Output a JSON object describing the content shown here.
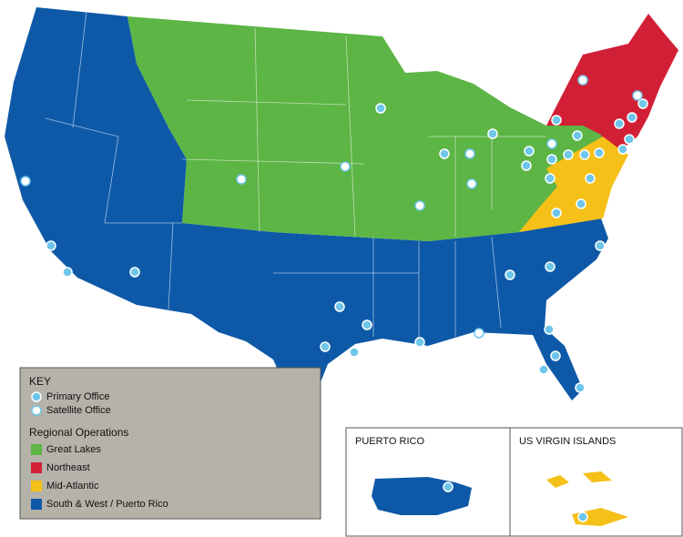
{
  "key": {
    "title": "KEY",
    "offices": [
      {
        "label": "Primary Office"
      },
      {
        "label": "Satellite Office"
      }
    ],
    "regions_title": "Regional Operations",
    "regions": [
      {
        "label": "Great Lakes",
        "color": "#5cb545"
      },
      {
        "label": "Northeast",
        "color": "#d11f36"
      },
      {
        "label": "Mid-Atlantic",
        "color": "#f5c018"
      },
      {
        "label": "South & West / Puerto Rico",
        "color": "#0e59a7"
      }
    ]
  },
  "insets": [
    {
      "title": "PUERTO RICO"
    },
    {
      "title": "US VIRGIN ISLANDS"
    }
  ]
}
